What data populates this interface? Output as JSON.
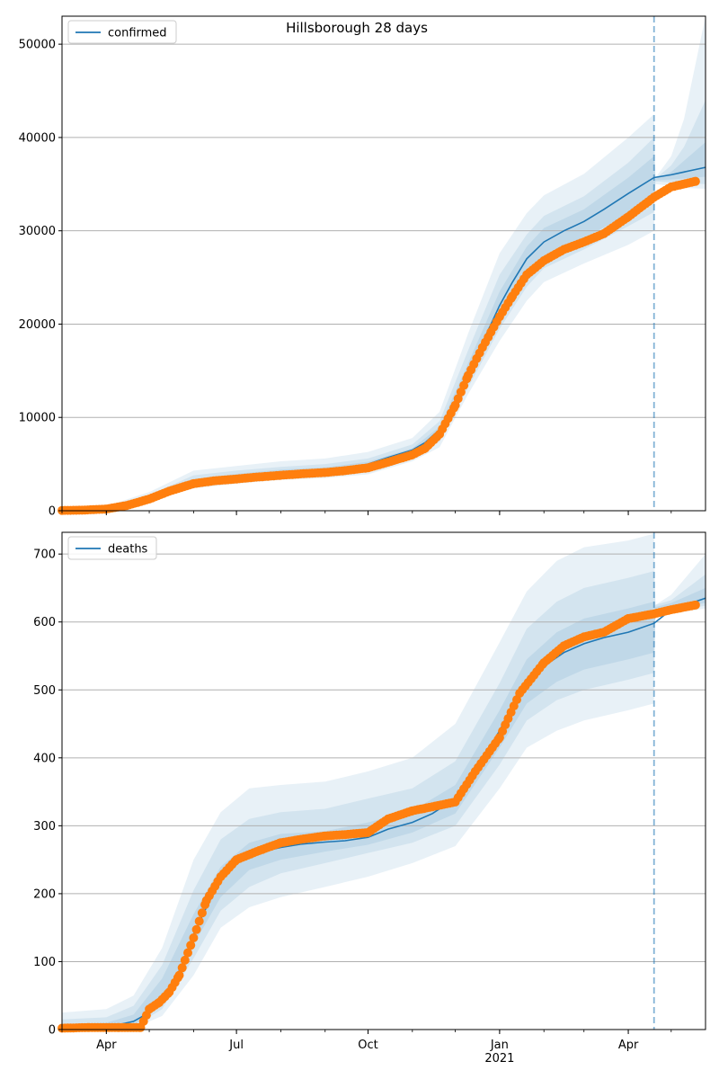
{
  "figure": {
    "title": "Hillsborough 28 days",
    "colors": {
      "model_line": "#1f77b4",
      "observed_points": "#ff7f0e",
      "band": "#1f77b4",
      "grid": "#b0b0b0",
      "vline": "#1f77b4"
    }
  },
  "chart_data": [
    {
      "type": "line",
      "panel": "top",
      "title": "Hillsborough 28 days",
      "xlabel": "",
      "ylabel": "",
      "x_range": [
        "2020-03-01",
        "2021-05-25"
      ],
      "ylim": [
        0,
        53000
      ],
      "y_ticks": [
        0,
        10000,
        20000,
        30000,
        40000,
        50000
      ],
      "y_tick_labels": [
        "0",
        "10000",
        "20000",
        "30000",
        "40000",
        "50000"
      ],
      "x_ticks": [
        "2020-04-01",
        "2020-07-01",
        "2020-10-01",
        "2021-01-01",
        "2021-04-01"
      ],
      "x_tick_labels": [],
      "grid": "horizontal",
      "legend": {
        "placement": "top-left",
        "entries": [
          "confirmed"
        ]
      },
      "forecast_start": "2021-04-19",
      "series": [
        {
          "name": "confirmed",
          "kind": "model_median",
          "x": [
            "2020-03-01",
            "2020-03-15",
            "2020-04-01",
            "2020-04-15",
            "2020-05-01",
            "2020-05-15",
            "2020-06-01",
            "2020-06-15",
            "2020-07-01",
            "2020-07-15",
            "2020-08-01",
            "2020-08-15",
            "2020-09-01",
            "2020-09-15",
            "2020-10-01",
            "2020-10-15",
            "2020-11-01",
            "2020-11-10",
            "2020-11-20",
            "2020-12-01",
            "2020-12-10",
            "2020-12-20",
            "2021-01-01",
            "2021-01-10",
            "2021-01-20",
            "2021-02-01",
            "2021-02-15",
            "2021-03-01",
            "2021-03-15",
            "2021-04-01",
            "2021-04-19",
            "2021-05-01",
            "2021-05-25"
          ],
          "y": [
            50,
            80,
            200,
            700,
            1400,
            2300,
            3100,
            3500,
            3700,
            3900,
            4100,
            4250,
            4350,
            4550,
            5000,
            5700,
            6500,
            7300,
            8700,
            11500,
            14500,
            18000,
            22000,
            24500,
            27000,
            28800,
            30000,
            31000,
            32300,
            34000,
            35700,
            36000,
            36800
          ]
        }
      ],
      "bands": [
        {
          "level": "outer",
          "x": [
            "2020-03-01",
            "2020-04-01",
            "2020-05-01",
            "2020-06-01",
            "2020-07-01",
            "2020-08-01",
            "2020-09-01",
            "2020-10-01",
            "2020-11-01",
            "2020-11-20",
            "2020-12-10",
            "2021-01-01",
            "2021-01-20",
            "2021-02-01",
            "2021-03-01",
            "2021-04-01",
            "2021-04-19",
            "2021-04-20",
            "2021-05-01",
            "2021-05-10",
            "2021-05-25"
          ],
          "lower": [
            0,
            100,
            1000,
            2400,
            2900,
            3300,
            3500,
            3900,
            5300,
            6800,
            12500,
            18200,
            22500,
            24500,
            26500,
            28500,
            30000,
            35000,
            34800,
            34600,
            34500
          ],
          "upper": [
            300,
            500,
            2000,
            4300,
            4800,
            5300,
            5600,
            6300,
            7800,
            10600,
            19000,
            27600,
            31900,
            33800,
            36100,
            40000,
            42500,
            35700,
            38000,
            42000,
            53000
          ]
        },
        {
          "level": "middle",
          "x": [
            "2020-03-01",
            "2020-04-01",
            "2020-05-01",
            "2020-06-01",
            "2020-07-01",
            "2020-08-01",
            "2020-09-01",
            "2020-10-01",
            "2020-11-01",
            "2020-11-20",
            "2020-12-10",
            "2021-01-01",
            "2021-01-20",
            "2021-02-01",
            "2021-03-01",
            "2021-04-01",
            "2021-04-19",
            "2021-04-20",
            "2021-05-01",
            "2021-05-10",
            "2021-05-25"
          ],
          "lower": [
            10,
            140,
            1200,
            2700,
            3200,
            3600,
            3800,
            4300,
            5700,
            7400,
            13200,
            19500,
            24000,
            26000,
            28000,
            30500,
            32000,
            35300,
            35200,
            35100,
            35000
          ],
          "upper": [
            200,
            350,
            1700,
            3800,
            4300,
            4700,
            5000,
            5600,
            7100,
            9600,
            17200,
            25300,
            29600,
            31600,
            33700,
            37300,
            40000,
            35600,
            37000,
            39000,
            44000
          ]
        },
        {
          "level": "inner",
          "x": [
            "2020-03-01",
            "2020-04-01",
            "2020-05-01",
            "2020-06-01",
            "2020-07-01",
            "2020-08-01",
            "2020-09-01",
            "2020-10-01",
            "2020-11-01",
            "2020-11-20",
            "2020-12-10",
            "2021-01-01",
            "2021-01-20",
            "2021-02-01",
            "2021-03-01",
            "2021-04-01",
            "2021-04-19",
            "2021-04-20",
            "2021-05-01",
            "2021-05-10",
            "2021-05-25"
          ],
          "lower": [
            20,
            170,
            1300,
            2900,
            3400,
            3800,
            4000,
            4600,
            6000,
            7900,
            13800,
            20500,
            25000,
            27200,
            29200,
            31800,
            33500,
            35400,
            35500,
            35600,
            35800
          ],
          "upper": [
            120,
            250,
            1500,
            3400,
            3950,
            4400,
            4650,
            5250,
            6700,
            9000,
            15800,
            23500,
            28300,
            30300,
            32300,
            35700,
            38000,
            35550,
            36300,
            37500,
            39500
          ]
        }
      ],
      "observed": {
        "x": [
          "2020-03-01",
          "2020-03-15",
          "2020-04-01",
          "2020-04-15",
          "2020-05-01",
          "2020-05-15",
          "2020-06-01",
          "2020-06-15",
          "2020-07-01",
          "2020-07-15",
          "2020-08-01",
          "2020-08-15",
          "2020-09-01",
          "2020-09-15",
          "2020-10-01",
          "2020-10-15",
          "2020-11-01",
          "2020-11-10",
          "2020-11-20",
          "2020-12-01",
          "2020-12-10",
          "2020-12-20",
          "2021-01-01",
          "2021-01-10",
          "2021-01-20",
          "2021-02-01",
          "2021-02-15",
          "2021-03-01",
          "2021-03-15",
          "2021-04-01",
          "2021-04-19",
          "2021-05-01",
          "2021-05-18"
        ],
        "y": [
          30,
          60,
          180,
          550,
          1250,
          2100,
          2900,
          3200,
          3400,
          3600,
          3800,
          3950,
          4100,
          4300,
          4600,
          5200,
          6000,
          6700,
          8200,
          11300,
          14500,
          17500,
          20800,
          23000,
          25300,
          26800,
          28000,
          28800,
          29700,
          31500,
          33600,
          34700,
          35300
        ]
      }
    },
    {
      "type": "line",
      "panel": "bottom",
      "title": "",
      "xlabel": "",
      "ylabel": "",
      "x_range": [
        "2020-03-01",
        "2021-05-25"
      ],
      "ylim": [
        0,
        732
      ],
      "y_ticks": [
        0,
        100,
        200,
        300,
        400,
        500,
        600,
        700
      ],
      "y_tick_labels": [
        "0",
        "100",
        "200",
        "300",
        "400",
        "500",
        "600",
        "700"
      ],
      "x_ticks": [
        "2020-04-01",
        "2020-07-01",
        "2020-10-01",
        "2021-01-01",
        "2021-04-01"
      ],
      "x_tick_labels": [
        "Apr",
        "Jul",
        "Oct",
        "Jan\n2021",
        "Apr"
      ],
      "grid": "horizontal",
      "legend": {
        "placement": "top-left",
        "entries": [
          "deaths"
        ]
      },
      "forecast_start": "2021-04-19",
      "series": [
        {
          "name": "deaths",
          "kind": "model_median",
          "x": [
            "2020-03-01",
            "2020-03-20",
            "2020-04-05",
            "2020-04-20",
            "2020-05-01",
            "2020-05-15",
            "2020-05-25",
            "2020-06-01",
            "2020-06-10",
            "2020-06-20",
            "2020-07-01",
            "2020-07-15",
            "2020-08-01",
            "2020-08-15",
            "2020-09-01",
            "2020-09-15",
            "2020-10-01",
            "2020-10-15",
            "2020-11-01",
            "2020-11-15",
            "2020-12-01",
            "2020-12-15",
            "2021-01-01",
            "2021-01-15",
            "2021-02-01",
            "2021-02-15",
            "2021-03-01",
            "2021-03-15",
            "2021-04-01",
            "2021-04-19",
            "2021-05-01",
            "2021-05-25"
          ],
          "y": [
            1,
            2,
            5,
            12,
            25,
            55,
            100,
            140,
            180,
            220,
            245,
            260,
            268,
            273,
            276,
            278,
            283,
            295,
            305,
            318,
            340,
            380,
            440,
            500,
            535,
            555,
            568,
            577,
            585,
            598,
            618,
            635
          ]
        }
      ],
      "bands": [
        {
          "level": "outer",
          "x": [
            "2020-03-01",
            "2020-04-01",
            "2020-04-20",
            "2020-05-10",
            "2020-06-01",
            "2020-06-20",
            "2020-07-10",
            "2020-08-01",
            "2020-09-01",
            "2020-10-01",
            "2020-11-01",
            "2020-12-01",
            "2021-01-01",
            "2021-01-20",
            "2021-02-10",
            "2021-03-01",
            "2021-04-01",
            "2021-04-19",
            "2021-04-20",
            "2021-05-01",
            "2021-05-25"
          ],
          "lower": [
            0,
            0,
            2,
            20,
            80,
            150,
            180,
            195,
            210,
            225,
            245,
            270,
            355,
            415,
            440,
            455,
            470,
            480,
            615,
            612,
            620
          ],
          "upper": [
            25,
            30,
            50,
            120,
            250,
            320,
            355,
            360,
            365,
            380,
            400,
            450,
            570,
            645,
            690,
            710,
            720,
            730,
            625,
            640,
            700
          ]
        },
        {
          "level": "middle",
          "x": [
            "2020-03-01",
            "2020-04-01",
            "2020-04-20",
            "2020-05-10",
            "2020-06-01",
            "2020-06-20",
            "2020-07-10",
            "2020-08-01",
            "2020-09-01",
            "2020-10-01",
            "2020-11-01",
            "2020-12-01",
            "2021-01-01",
            "2021-01-20",
            "2021-02-10",
            "2021-03-01",
            "2021-04-01",
            "2021-04-19",
            "2021-04-20",
            "2021-05-01",
            "2021-05-25"
          ],
          "lower": [
            0,
            1,
            4,
            30,
            105,
            175,
            210,
            230,
            245,
            260,
            275,
            300,
            390,
            455,
            485,
            500,
            515,
            525,
            615,
            616,
            624
          ],
          "upper": [
            15,
            18,
            35,
            95,
            205,
            280,
            310,
            320,
            325,
            340,
            355,
            395,
            510,
            590,
            630,
            650,
            665,
            675,
            625,
            632,
            670
          ]
        },
        {
          "level": "inner",
          "x": [
            "2020-03-01",
            "2020-04-01",
            "2020-04-20",
            "2020-05-10",
            "2020-06-01",
            "2020-06-20",
            "2020-07-10",
            "2020-08-01",
            "2020-09-01",
            "2020-10-01",
            "2020-11-01",
            "2020-12-01",
            "2021-01-01",
            "2021-01-20",
            "2021-02-10",
            "2021-03-01",
            "2021-04-01",
            "2021-04-19",
            "2021-04-20",
            "2021-05-01",
            "2021-05-25"
          ],
          "lower": [
            0,
            2,
            6,
            40,
            125,
            195,
            235,
            250,
            262,
            272,
            290,
            318,
            415,
            480,
            512,
            530,
            545,
            555,
            617,
            620,
            628
          ],
          "upper": [
            8,
            10,
            22,
            75,
            170,
            240,
            275,
            288,
            292,
            305,
            322,
            360,
            470,
            545,
            585,
            605,
            620,
            630,
            622,
            628,
            650
          ]
        }
      ],
      "observed": {
        "x": [
          "2020-03-01",
          "2020-03-20",
          "2020-04-10",
          "2020-04-25",
          "2020-05-01",
          "2020-05-08",
          "2020-05-15",
          "2020-05-22",
          "2020-06-01",
          "2020-06-10",
          "2020-06-20",
          "2020-07-01",
          "2020-07-15",
          "2020-08-01",
          "2020-08-15",
          "2020-09-01",
          "2020-09-15",
          "2020-10-01",
          "2020-10-15",
          "2020-11-01",
          "2020-11-15",
          "2020-12-01",
          "2020-12-15",
          "2021-01-01",
          "2021-01-15",
          "2021-02-01",
          "2021-02-15",
          "2021-03-01",
          "2021-03-15",
          "2021-04-01",
          "2021-04-19",
          "2021-05-01",
          "2021-05-18"
        ],
        "y": [
          2,
          3,
          3,
          3,
          30,
          40,
          55,
          80,
          135,
          190,
          225,
          250,
          262,
          275,
          280,
          285,
          287,
          290,
          310,
          322,
          328,
          335,
          380,
          430,
          495,
          540,
          565,
          578,
          585,
          605,
          612,
          618,
          625
        ]
      }
    }
  ]
}
